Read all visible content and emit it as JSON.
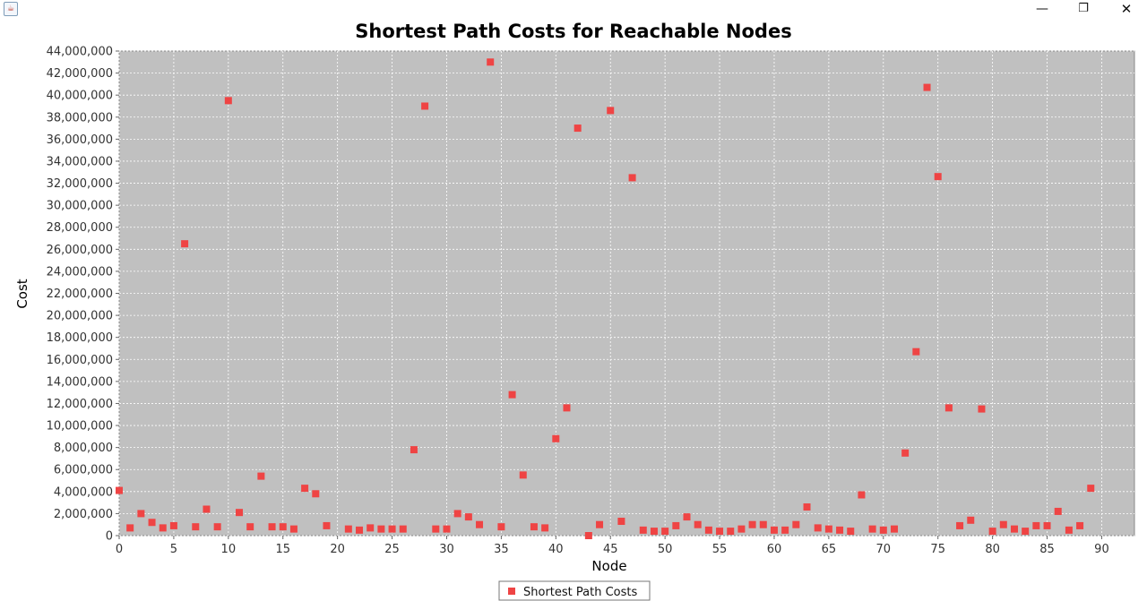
{
  "window": {
    "controls": {
      "minimize": "—",
      "maximize": "❐",
      "close": "✕"
    }
  },
  "colors": {
    "plot_background": "#c0c0c0",
    "gridline": "#ffffff",
    "marker": "#ef4444"
  },
  "chart_data": {
    "type": "scatter",
    "title": "Shortest Path Costs for Reachable Nodes",
    "xlabel": "Node",
    "ylabel": "Cost",
    "xlim": [
      0,
      93
    ],
    "ylim": [
      0,
      44000000
    ],
    "x_ticks": [
      0,
      5,
      10,
      15,
      20,
      25,
      30,
      35,
      40,
      45,
      50,
      55,
      60,
      65,
      70,
      75,
      80,
      85,
      90
    ],
    "x_tick_labels": [
      "0",
      "5",
      "10",
      "15",
      "20",
      "25",
      "30",
      "35",
      "40",
      "45",
      "50",
      "55",
      "60",
      "65",
      "70",
      "75",
      "80",
      "85",
      "90"
    ],
    "y_ticks": [
      0,
      2000000,
      4000000,
      6000000,
      8000000,
      10000000,
      12000000,
      14000000,
      16000000,
      18000000,
      20000000,
      22000000,
      24000000,
      26000000,
      28000000,
      30000000,
      32000000,
      34000000,
      36000000,
      38000000,
      40000000,
      42000000,
      44000000
    ],
    "y_tick_labels": [
      "0",
      "2,000,000",
      "4,000,000",
      "6,000,000",
      "8,000,000",
      "10,000,000",
      "12,000,000",
      "14,000,000",
      "16,000,000",
      "18,000,000",
      "20,000,000",
      "22,000,000",
      "24,000,000",
      "26,000,000",
      "28,000,000",
      "30,000,000",
      "32,000,000",
      "34,000,000",
      "36,000,000",
      "38,000,000",
      "40,000,000",
      "42,000,000",
      "44,000,000"
    ],
    "grid": true,
    "legend_position": "bottom-center",
    "series": [
      {
        "name": "Shortest Path Costs",
        "color": "#ef4444",
        "marker": "square",
        "x": [
          0,
          1,
          2,
          3,
          4,
          5,
          6,
          7,
          8,
          9,
          10,
          11,
          12,
          13,
          14,
          15,
          16,
          17,
          18,
          19,
          21,
          22,
          23,
          24,
          25,
          26,
          27,
          28,
          29,
          30,
          31,
          32,
          33,
          34,
          35,
          36,
          37,
          38,
          39,
          40,
          41,
          42,
          43,
          44,
          45,
          46,
          47,
          48,
          49,
          50,
          51,
          52,
          53,
          54,
          55,
          56,
          57,
          58,
          59,
          60,
          61,
          62,
          63,
          64,
          65,
          66,
          67,
          68,
          69,
          70,
          71,
          72,
          73,
          74,
          75,
          76,
          77,
          78,
          79,
          80,
          81,
          82,
          83,
          84,
          85,
          86,
          87,
          88,
          89
        ],
        "y": [
          4100000,
          700000,
          2000000,
          1200000,
          700000,
          900000,
          26500000,
          800000,
          2400000,
          800000,
          39500000,
          2100000,
          800000,
          5400000,
          800000,
          800000,
          600000,
          4300000,
          3800000,
          900000,
          600000,
          500000,
          700000,
          600000,
          600000,
          600000,
          7800000,
          39000000,
          600000,
          600000,
          2000000,
          1700000,
          1000000,
          43000000,
          800000,
          12800000,
          5500000,
          800000,
          700000,
          8800000,
          11600000,
          37000000,
          0,
          1000000,
          38600000,
          1300000,
          32500000,
          500000,
          400000,
          400000,
          900000,
          1700000,
          1000000,
          500000,
          400000,
          400000,
          600000,
          1000000,
          1000000,
          500000,
          500000,
          1000000,
          2600000,
          700000,
          600000,
          500000,
          400000,
          3700000,
          600000,
          500000,
          600000,
          7500000,
          16700000,
          40700000,
          32600000,
          11600000,
          900000,
          1400000,
          11500000,
          400000,
          1000000,
          600000,
          400000,
          900000,
          900000,
          2200000,
          500000,
          900000,
          4300000
        ]
      }
    ]
  }
}
